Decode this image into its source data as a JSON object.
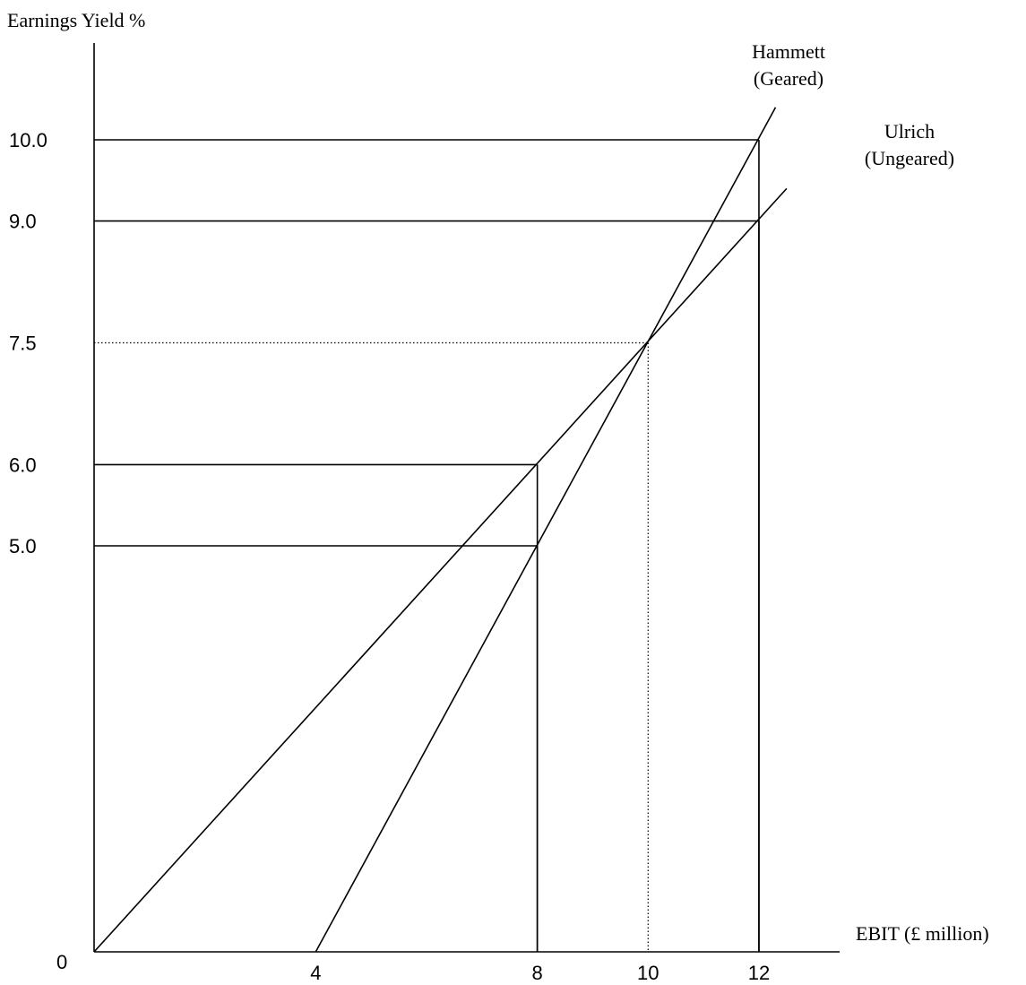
{
  "chart_data": {
    "type": "line",
    "ylabel": "Earnings Yield %",
    "xlabel": "EBIT (£ million)",
    "origin_label": "0",
    "xlim": [
      0,
      12.5
    ],
    "ylim": [
      0,
      10.7
    ],
    "x_ticks": [
      {
        "value": 4,
        "label": "4"
      },
      {
        "value": 8,
        "label": "8"
      },
      {
        "value": 10,
        "label": "10"
      },
      {
        "value": 12,
        "label": "12"
      }
    ],
    "y_ticks": [
      {
        "value": 10.0,
        "label": "10.0"
      },
      {
        "value": 9.0,
        "label": "9.0"
      },
      {
        "value": 7.5,
        "label": "7.5"
      },
      {
        "value": 6.0,
        "label": "6.0"
      },
      {
        "value": 5.0,
        "label": "5.0"
      }
    ],
    "series": [
      {
        "label_lines": [
          "Hammett",
          "(Geared)"
        ],
        "x": [
          4,
          12.3
        ],
        "y": [
          0,
          10.4
        ]
      },
      {
        "label_lines": [
          "Ulrich",
          "(Ungeared)"
        ],
        "x": [
          0,
          12.5
        ],
        "y": [
          0,
          9.4
        ]
      }
    ],
    "reference_lines": [
      {
        "x": 8,
        "y": 6.0,
        "style": "solid"
      },
      {
        "x": 8,
        "y": 5.0,
        "style": "solid"
      },
      {
        "x": 12,
        "y": 10.0,
        "style": "solid"
      },
      {
        "x": 12,
        "y": 9.0,
        "style": "solid"
      },
      {
        "x": 10,
        "y": 7.5,
        "style": "dotted"
      }
    ],
    "grid": false
  }
}
